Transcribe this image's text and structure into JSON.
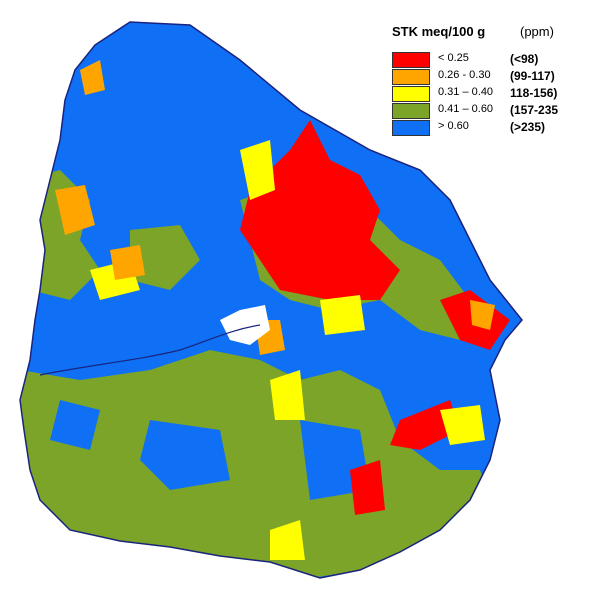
{
  "legend": {
    "title": "STK meq/100 g",
    "unit": "(ppm)",
    "items": [
      {
        "label": "< 0.25",
        "ppm": "(<98)",
        "color": "#ff0000"
      },
      {
        "label": "0.26 - 0.30",
        "ppm": "(99-117)",
        "color": "#ffa500"
      },
      {
        "label": "0.31 – 0.40",
        "ppm": "118-156)",
        "color": "#ffff00"
      },
      {
        "label": "0.41 – 0.60",
        "ppm": "(157-235",
        "color": "#7ba428"
      },
      {
        "label": "> 0.60",
        "ppm": "(>235)",
        "color": "#0f6ff5"
      }
    ]
  }
}
